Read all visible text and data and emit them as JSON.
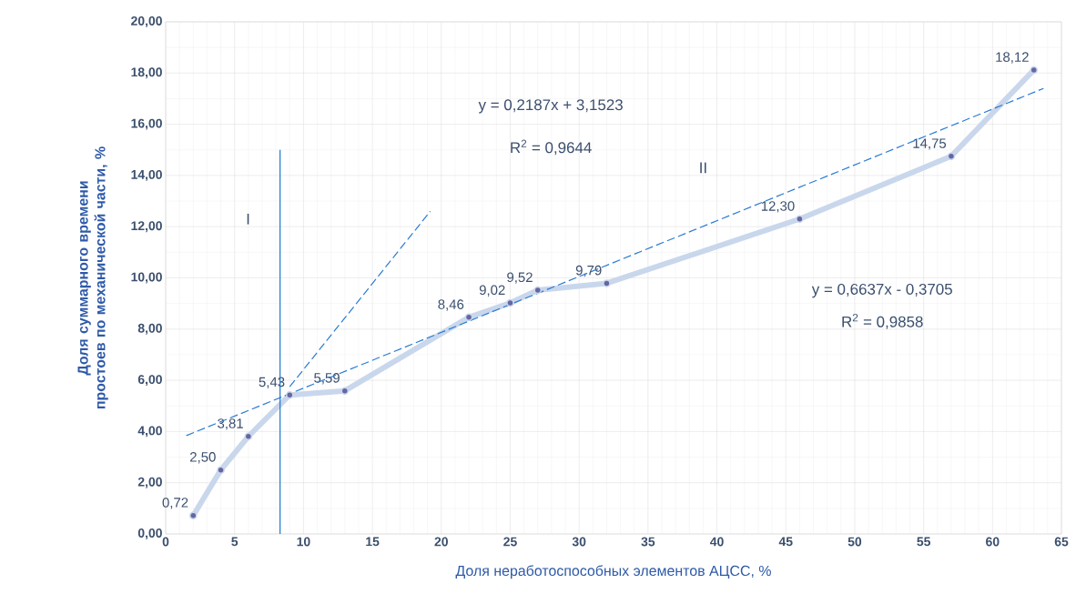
{
  "chart_data": {
    "type": "line",
    "xlabel": "Доля неработоспособных элементов АЦСС, %",
    "ylabel": "Доля суммарного времени простоев по механической части, %",
    "xlim": [
      0,
      65
    ],
    "xticks": [
      0,
      5,
      10,
      15,
      20,
      25,
      30,
      35,
      40,
      45,
      50,
      55,
      60,
      65
    ],
    "ylim": [
      0,
      20
    ],
    "yticks": [
      {
        "value": 0,
        "label": "0,00"
      },
      {
        "value": 2,
        "label": "2,00"
      },
      {
        "value": 4,
        "label": "4,00"
      },
      {
        "value": 6,
        "label": "6,00"
      },
      {
        "value": 8,
        "label": "8,00"
      },
      {
        "value": 10,
        "label": "10,00"
      },
      {
        "value": 12,
        "label": "12,00"
      },
      {
        "value": 14,
        "label": "14,00"
      },
      {
        "value": 16,
        "label": "16,00"
      },
      {
        "value": 18,
        "label": "18,00"
      },
      {
        "value": 20,
        "label": "20,00"
      }
    ],
    "grid": true,
    "series": [
      {
        "color": "#c9d7ec",
        "marker": "circle",
        "line_style": "solid",
        "x": [
          2,
          4,
          6,
          9,
          13,
          22,
          25,
          27,
          32,
          46,
          57,
          63
        ],
        "values": [
          0.72,
          2.5,
          3.81,
          5.43,
          5.59,
          8.46,
          9.02,
          9.52,
          9.79,
          12.3,
          14.75,
          18.12
        ],
        "value_labels": [
          "0,72",
          "2,50",
          "3,81",
          "5,43",
          "5,59",
          "8,46",
          "9,02",
          "9,52",
          "9,79",
          "12,30",
          "14,75",
          "18,12"
        ]
      },
      {
        "color": "#2b7bd4",
        "marker": "none",
        "line_style": "dashed",
        "x": [
          9.0,
          19.2
        ],
        "values": [
          5.75,
          12.6
        ]
      },
      {
        "color": "#2b7bd4",
        "marker": "none",
        "line_style": "dashed",
        "x": [
          1.5,
          63.7
        ],
        "values": [
          3.84,
          17.4
        ]
      },
      {
        "color": "#1f78c8",
        "marker": "none",
        "line_style": "solid",
        "x": [
          8.3,
          8.3
        ],
        "values": [
          0,
          15
        ]
      }
    ],
    "annotations": [
      "y = 0,2187x + 3,1523",
      "R$^{2}$ = 0,9644",
      "I",
      "II",
      "y = 0,6637x - 0,3705",
      "R$^{2}$ = 0,9858"
    ]
  }
}
